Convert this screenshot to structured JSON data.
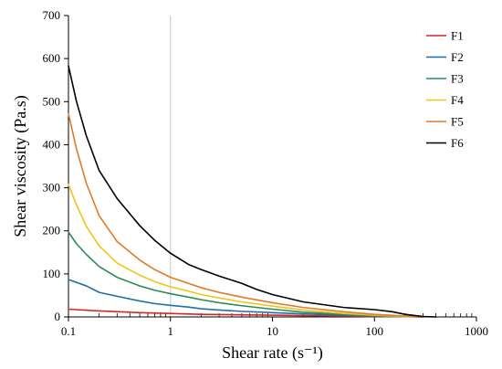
{
  "chart_data": {
    "type": "line",
    "xlabel": "Shear rate (s⁻¹)",
    "ylabel": "Shear viscosity (Pa.s)",
    "xscale": "log",
    "xlim": [
      0.1,
      1000
    ],
    "ylim": [
      0,
      700
    ],
    "x_ticks": [
      "0.1",
      "1",
      "10",
      "100",
      "1000"
    ],
    "y_ticks": [
      "0",
      "100",
      "200",
      "300",
      "400",
      "500",
      "600",
      "700"
    ],
    "reference_line_x": 1,
    "grid": false,
    "legend_position": "top-right",
    "series": [
      {
        "name": "F1",
        "color": "#d62728",
        "points": [
          [
            0.1,
            18
          ],
          [
            0.2,
            14
          ],
          [
            0.5,
            10
          ],
          [
            1,
            8
          ],
          [
            2,
            6
          ],
          [
            5,
            5
          ],
          [
            10,
            4
          ],
          [
            20,
            3
          ],
          [
            50,
            2
          ],
          [
            100,
            1
          ],
          [
            200,
            0.5
          ],
          [
            300,
            0
          ]
        ]
      },
      {
        "name": "F2",
        "color": "#1f6fa8",
        "points": [
          [
            0.1,
            87
          ],
          [
            0.15,
            72
          ],
          [
            0.2,
            57
          ],
          [
            0.3,
            48
          ],
          [
            0.5,
            37
          ],
          [
            0.7,
            31
          ],
          [
            1,
            27
          ],
          [
            1.5,
            23
          ],
          [
            2,
            19
          ],
          [
            3,
            16
          ],
          [
            5,
            13
          ],
          [
            10,
            10
          ],
          [
            20,
            7
          ],
          [
            50,
            4
          ],
          [
            100,
            2
          ],
          [
            200,
            0.5
          ],
          [
            300,
            0
          ]
        ]
      },
      {
        "name": "F3",
        "color": "#2e8b57",
        "points": [
          [
            0.1,
            197
          ],
          [
            0.12,
            170
          ],
          [
            0.15,
            145
          ],
          [
            0.2,
            117
          ],
          [
            0.3,
            92
          ],
          [
            0.5,
            72
          ],
          [
            0.7,
            62
          ],
          [
            1,
            54
          ],
          [
            1.5,
            46
          ],
          [
            2,
            40
          ],
          [
            3,
            33
          ],
          [
            5,
            26
          ],
          [
            10,
            18
          ],
          [
            20,
            11
          ],
          [
            50,
            6
          ],
          [
            100,
            3
          ],
          [
            200,
            1
          ],
          [
            300,
            0
          ]
        ]
      },
      {
        "name": "F4",
        "color": "#f0c419",
        "points": [
          [
            0.1,
            308
          ],
          [
            0.12,
            260
          ],
          [
            0.15,
            210
          ],
          [
            0.2,
            165
          ],
          [
            0.3,
            125
          ],
          [
            0.5,
            97
          ],
          [
            0.7,
            82
          ],
          [
            1,
            70
          ],
          [
            1.5,
            60
          ],
          [
            2,
            52
          ],
          [
            3,
            44
          ],
          [
            5,
            35
          ],
          [
            10,
            25
          ],
          [
            20,
            16
          ],
          [
            50,
            8
          ],
          [
            100,
            4
          ],
          [
            200,
            1
          ],
          [
            300,
            0
          ]
        ]
      },
      {
        "name": "F5",
        "color": "#e07b2a",
        "points": [
          [
            0.1,
            472
          ],
          [
            0.12,
            390
          ],
          [
            0.15,
            310
          ],
          [
            0.2,
            235
          ],
          [
            0.3,
            175
          ],
          [
            0.5,
            132
          ],
          [
            0.7,
            110
          ],
          [
            1,
            92
          ],
          [
            1.5,
            78
          ],
          [
            2,
            68
          ],
          [
            3,
            57
          ],
          [
            5,
            46
          ],
          [
            10,
            33
          ],
          [
            20,
            22
          ],
          [
            50,
            12
          ],
          [
            100,
            6
          ],
          [
            200,
            2
          ],
          [
            300,
            0
          ]
        ]
      },
      {
        "name": "F6",
        "color": "#000000",
        "points": [
          [
            0.1,
            583
          ],
          [
            0.12,
            500
          ],
          [
            0.15,
            420
          ],
          [
            0.2,
            340
          ],
          [
            0.3,
            275
          ],
          [
            0.5,
            212
          ],
          [
            0.7,
            178
          ],
          [
            1,
            148
          ],
          [
            1.5,
            122
          ],
          [
            2,
            110
          ],
          [
            3,
            95
          ],
          [
            5,
            78
          ],
          [
            7,
            64
          ],
          [
            10,
            52
          ],
          [
            20,
            35
          ],
          [
            50,
            22
          ],
          [
            100,
            17
          ],
          [
            150,
            12
          ],
          [
            200,
            6
          ],
          [
            300,
            1
          ],
          [
            400,
            0
          ]
        ]
      }
    ]
  }
}
